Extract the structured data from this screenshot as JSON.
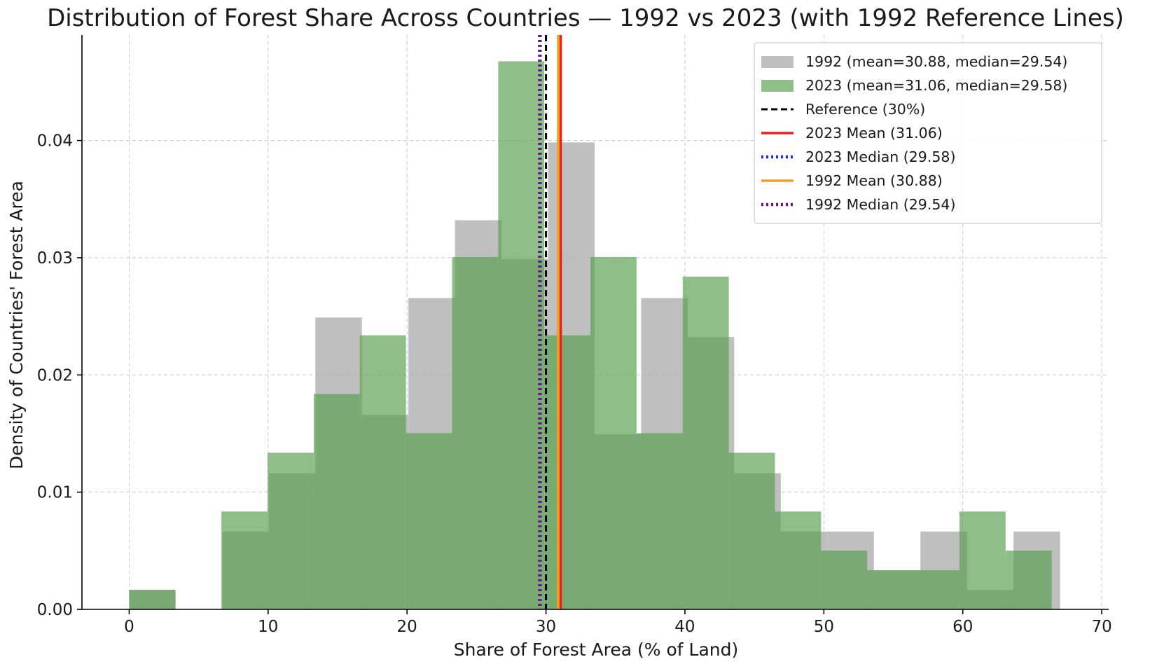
{
  "chart_data": {
    "type": "histogram",
    "title": "Distribution of Forest Share Across Countries — 1992 vs 2023 (with 1992 Reference Lines)",
    "xlabel": "Share of Forest Area (% of Land)",
    "ylabel": "Density of Countries' Forest Area",
    "xlim": [
      -3.4,
      70.5
    ],
    "ylim": [
      0,
      0.049
    ],
    "xticks": [
      0,
      10,
      20,
      30,
      40,
      50,
      60,
      70
    ],
    "yticks": [
      0.0,
      0.01,
      0.02,
      0.03,
      0.04
    ],
    "ytick_labels": [
      "0.00",
      "0.01",
      "0.02",
      "0.03",
      "0.04"
    ],
    "grid": true,
    "legend_position": "top-right",
    "series": [
      {
        "name": "1992 (mean=30.88, median=29.54)",
        "color": "#a9a9a9",
        "opacity": 0.75,
        "bin_edges": [
          0.0,
          3.35,
          6.7,
          10.05,
          13.4,
          16.75,
          20.1,
          23.45,
          26.8,
          30.15,
          33.5,
          36.85,
          40.2,
          43.55,
          46.9,
          50.25,
          53.6,
          56.95,
          60.3,
          63.65,
          67.0
        ],
        "densities": [
          0.00166,
          0.0,
          0.00664,
          0.01162,
          0.0249,
          0.0166,
          0.02656,
          0.0332,
          0.02988,
          0.03984,
          0.01494,
          0.02656,
          0.02324,
          0.01162,
          0.00664,
          0.00664,
          0.00332,
          0.00664,
          0.00166,
          0.00664
        ]
      },
      {
        "name": "2023 (mean=31.06, median=29.58)",
        "color": "#5aa04f",
        "opacity": 0.68,
        "bin_edges": [
          0.0,
          3.32,
          6.64,
          9.96,
          13.28,
          16.6,
          19.92,
          23.24,
          26.56,
          29.88,
          33.2,
          36.52,
          39.84,
          43.16,
          46.48,
          49.8,
          53.12,
          56.44,
          59.76,
          63.08,
          66.4
        ],
        "densities": [
          0.00167,
          0.0,
          0.00835,
          0.01336,
          0.01837,
          0.02338,
          0.01503,
          0.03006,
          0.04676,
          0.02338,
          0.03006,
          0.01503,
          0.02839,
          0.01336,
          0.00835,
          0.00501,
          0.00334,
          0.00334,
          0.00835,
          0.00501
        ]
      }
    ],
    "reference_lines": [
      {
        "name": "Reference (30%)",
        "x": 30.0,
        "color": "#000000",
        "style": "dashed"
      },
      {
        "name": "2023 Mean (31.06)",
        "x": 31.06,
        "color": "#e8201c",
        "style": "solid"
      },
      {
        "name": "2023 Median (29.58)",
        "x": 29.58,
        "color": "#1f2ce8",
        "style": "dotted"
      },
      {
        "name": "1992 Mean (30.88)",
        "x": 30.88,
        "color": "#f3a021",
        "style": "solid"
      },
      {
        "name": "1992 Median (29.54)",
        "x": 29.54,
        "color": "#6d167a",
        "style": "dotted"
      }
    ]
  }
}
